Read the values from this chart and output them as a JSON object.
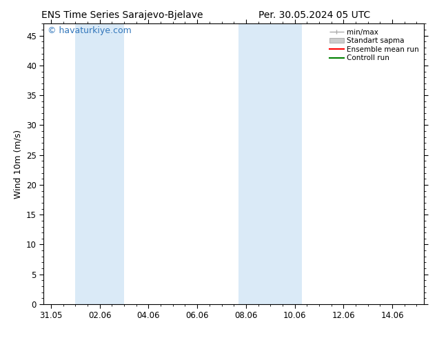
{
  "title_left": "ENS Time Series Sarajevo-Bjelave",
  "title_right": "Per. 30.05.2024 05 UTC",
  "ylabel": "Wind 10m (m/s)",
  "watermark": "© havaturkiye.com",
  "ylim": [
    0,
    47
  ],
  "yticks": [
    0,
    5,
    10,
    15,
    20,
    25,
    30,
    35,
    40,
    45
  ],
  "xtick_labels": [
    "31.05",
    "02.06",
    "04.06",
    "06.06",
    "08.06",
    "10.06",
    "12.06",
    "14.06"
  ],
  "xtick_positions": [
    0,
    2,
    4,
    6,
    8,
    10,
    12,
    14
  ],
  "xlim": [
    -0.3,
    15.3
  ],
  "shaded_regions": [
    {
      "xmin": 1.0,
      "xmax": 3.0,
      "color": "#daeaf7"
    },
    {
      "xmin": 7.7,
      "xmax": 9.0,
      "color": "#daeaf7"
    },
    {
      "xmin": 9.0,
      "xmax": 10.3,
      "color": "#daeaf7"
    }
  ],
  "legend_items": [
    {
      "label": "min/max",
      "color": "#aaaaaa",
      "lw": 1.0
    },
    {
      "label": "Standart sapma",
      "color": "#cccccc",
      "lw": 6
    },
    {
      "label": "Ensemble mean run",
      "color": "#ff0000",
      "lw": 1.5
    },
    {
      "label": "Controll run",
      "color": "#008000",
      "lw": 1.5
    }
  ],
  "bg_color": "#ffffff",
  "plot_bg_color": "#ffffff",
  "title_fontsize": 10,
  "label_fontsize": 9,
  "tick_fontsize": 8.5,
  "watermark_color": "#3377bb",
  "watermark_fontsize": 9
}
